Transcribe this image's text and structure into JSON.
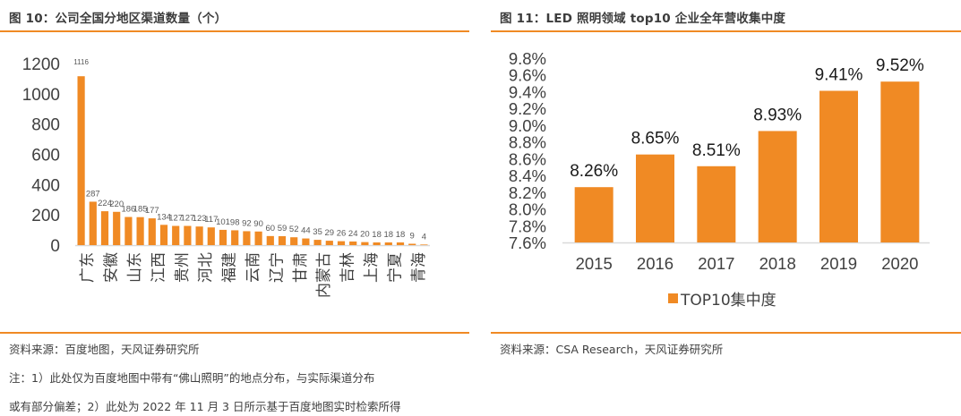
{
  "colors": {
    "accent": "#f08a24",
    "bar": "#f08a24",
    "axis": "#d9d9d9",
    "text": "#404040"
  },
  "left": {
    "title": "图 10：公司全国分地区渠道数量（个）",
    "source": "资料来源：百度地图，天风证券研究所",
    "note_line1": "注：1）此处仅为百度地图中带有“佛山照明”的地点分布，与实际渠道分布",
    "note_line2": "或有部分偏差；2）此处为 2022 年 11 月 3 日所示基于百度地图实时检索所得"
  },
  "right": {
    "title": "图 11：LED 照明领域 top10 企业全年营收集中度",
    "source": "资料来源：CSA Research，天风证券研究所"
  },
  "chart_data": [
    {
      "type": "bar",
      "title": "图 10：公司全国分地区渠道数量（个）",
      "xlabel": "",
      "ylabel": "",
      "ylim": [
        0,
        1200
      ],
      "yticks": [
        "0",
        "200",
        "400",
        "600",
        "800",
        "1000",
        "1200"
      ],
      "ytick_values": [
        0,
        200,
        400,
        600,
        800,
        1000,
        1200
      ],
      "grid": false,
      "values": [
        1116,
        287,
        224,
        220,
        186,
        185,
        177,
        134,
        127,
        127,
        123,
        117,
        101,
        98,
        92,
        90,
        60,
        59,
        52,
        44,
        35,
        29,
        26,
        24,
        20,
        18,
        18,
        18,
        9,
        4
      ],
      "data_labels": [
        "1116",
        "287",
        "224",
        "220",
        "186",
        "185",
        "177",
        "134",
        "127",
        "127",
        "123",
        "117",
        "101",
        "98",
        "92",
        "90",
        "60",
        "59",
        "52",
        "44",
        "35",
        "29",
        "26",
        "24",
        "20",
        "18",
        "18",
        "18",
        "9",
        "4"
      ],
      "visible_category_labels": [
        "广东",
        "安徽",
        "山东",
        "江西",
        "贵州",
        "河北",
        "福建",
        "云南",
        "辽宁",
        "甘肃",
        "内蒙古",
        "吉林",
        "上海",
        "宁夏",
        "青海"
      ],
      "label_every": 2
    },
    {
      "type": "bar",
      "title": "图 11：LED 照明领域 top10 企业全年营收集中度",
      "xlabel": "",
      "ylabel": "",
      "ylim": [
        7.6,
        9.8
      ],
      "yticks": [
        "7.6%",
        "7.8%",
        "8.0%",
        "8.2%",
        "8.4%",
        "8.6%",
        "8.8%",
        "9.0%",
        "9.2%",
        "9.4%",
        "9.6%",
        "9.8%"
      ],
      "ytick_values": [
        7.6,
        7.8,
        8.0,
        8.2,
        8.4,
        8.6,
        8.8,
        9.0,
        9.2,
        9.4,
        9.6,
        9.8
      ],
      "grid": false,
      "categories": [
        "2015",
        "2016",
        "2017",
        "2018",
        "2019",
        "2020"
      ],
      "series": [
        {
          "name": "TOP10集中度",
          "values": [
            8.26,
            8.65,
            8.51,
            8.93,
            9.41,
            9.52
          ],
          "data_labels": [
            "8.26%",
            "8.65%",
            "8.51%",
            "8.93%",
            "9.41%",
            "9.52%"
          ]
        }
      ],
      "legend": {
        "position": "bottom",
        "entries": [
          "TOP10集中度"
        ]
      }
    }
  ]
}
